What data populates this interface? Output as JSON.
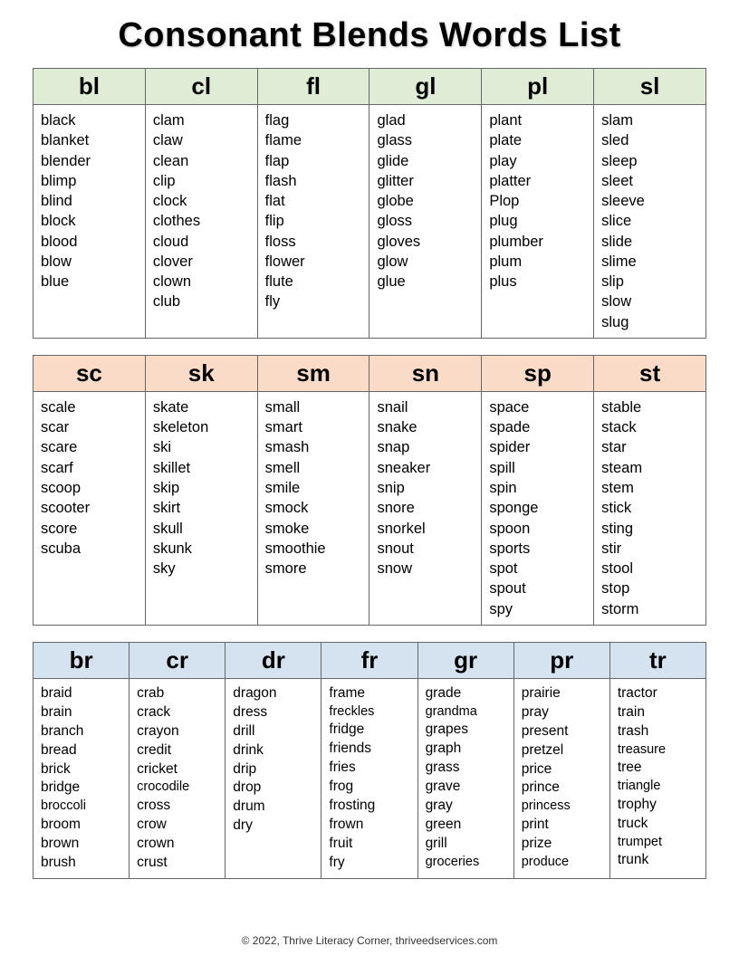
{
  "title": "Consonant Blends Words List",
  "footer": "© 2022, Thrive Literacy Corner, thriveedservices.com",
  "colors": {
    "green": "#e0edd6",
    "peach": "#fadbc7",
    "blue": "#d5e2f0",
    "border": "#666666",
    "background": "#ffffff"
  },
  "sections": [
    {
      "bgClass": "bg-green",
      "columns": [
        {
          "header": "bl",
          "words": [
            "black",
            "blanket",
            "blender",
            "blimp",
            "blind",
            "block",
            "blood",
            "blow",
            "blue"
          ]
        },
        {
          "header": "cl",
          "words": [
            "clam",
            "claw",
            "clean",
            "clip",
            "clock",
            "clothes",
            "cloud",
            "clover",
            "clown",
            "club"
          ]
        },
        {
          "header": "fl",
          "words": [
            "flag",
            "flame",
            "flap",
            "flash",
            "flat",
            "flip",
            "floss",
            "flower",
            "flute",
            "fly"
          ]
        },
        {
          "header": "gl",
          "words": [
            "glad",
            "glass",
            "glide",
            "glitter",
            "globe",
            "gloss",
            "gloves",
            "glow",
            "glue"
          ]
        },
        {
          "header": "pl",
          "words": [
            "plant",
            "plate",
            "play",
            "platter",
            "Plop",
            "plug",
            "plumber",
            "plum",
            "plus"
          ]
        },
        {
          "header": "sl",
          "words": [
            "slam",
            "sled",
            "sleep",
            "sleet",
            "sleeve",
            "slice",
            "slide",
            "slime",
            "slip",
            "slow",
            "slug"
          ]
        }
      ]
    },
    {
      "bgClass": "bg-peach",
      "columns": [
        {
          "header": "sc",
          "words": [
            "scale",
            "scar",
            "scare",
            "scarf",
            "scoop",
            "scooter",
            "score",
            "scuba"
          ]
        },
        {
          "header": "sk",
          "words": [
            "skate",
            "skeleton",
            "ski",
            "skillet",
            "skip",
            "skirt",
            "skull",
            "skunk",
            "sky"
          ]
        },
        {
          "header": "sm",
          "words": [
            "small",
            "smart",
            "smash",
            "smell",
            "smile",
            "smock",
            "smoke",
            "smoothie",
            "smore"
          ]
        },
        {
          "header": "sn",
          "words": [
            "snail",
            "snake",
            "snap",
            "sneaker",
            "snip",
            "snore",
            "snorkel",
            "snout",
            "snow"
          ]
        },
        {
          "header": "sp",
          "words": [
            "space",
            "spade",
            "spider",
            "spill",
            "spin",
            "sponge",
            "spoon",
            "sports",
            "spot",
            "spout",
            "spy"
          ]
        },
        {
          "header": "st",
          "words": [
            "stable",
            "stack",
            "star",
            "steam",
            "stem",
            "stick",
            "sting",
            "stir",
            "stool",
            "stop",
            "storm"
          ]
        }
      ]
    },
    {
      "bgClass": "bg-blue",
      "columns": [
        {
          "header": "br",
          "words": [
            "braid",
            "brain",
            "branch",
            "bread",
            "brick",
            "bridge",
            "broccoli",
            "broom",
            "brown",
            "brush"
          ]
        },
        {
          "header": "cr",
          "words": [
            "crab",
            "crack",
            "crayon",
            "credit",
            "cricket",
            "crocodile",
            "cross",
            "crow",
            "crown",
            "crust"
          ]
        },
        {
          "header": "dr",
          "words": [
            "dragon",
            "dress",
            "drill",
            "drink",
            "drip",
            "drop",
            "drum",
            "dry"
          ]
        },
        {
          "header": "fr",
          "words": [
            "frame",
            "freckles",
            "fridge",
            "friends",
            "fries",
            "frog",
            "frosting",
            "frown",
            "fruit",
            "fry"
          ]
        },
        {
          "header": "gr",
          "words": [
            "grade",
            "grandma",
            "grapes",
            "graph",
            "grass",
            "grave",
            "gray",
            "green",
            "grill",
            "groceries"
          ]
        },
        {
          "header": "pr",
          "words": [
            "prairie",
            "pray",
            "present",
            "pretzel",
            "price",
            "prince",
            "princess",
            "print",
            "prize",
            "produce"
          ]
        },
        {
          "header": "tr",
          "words": [
            "tractor",
            "train",
            "trash",
            "treasure",
            "tree",
            "triangle",
            "trophy",
            "truck",
            "trumpet",
            "trunk"
          ]
        }
      ]
    }
  ]
}
